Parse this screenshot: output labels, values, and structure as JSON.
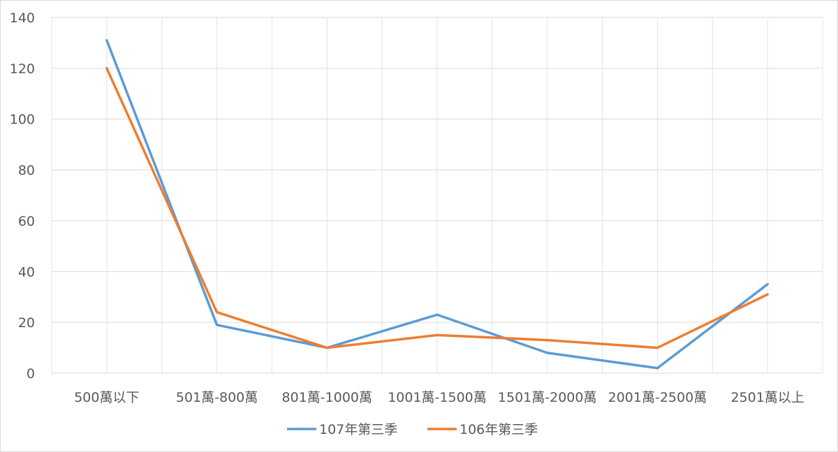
{
  "chart_data": {
    "type": "line",
    "title": "",
    "xlabel": "",
    "ylabel": "",
    "categories": [
      "500萬以下",
      "501萬-800萬",
      "801萬-1000萬",
      "1001萬-1500萬",
      "1501萬-2000萬",
      "2001萬-2500萬",
      "2501萬以上"
    ],
    "ylim": [
      0,
      140
    ],
    "yticks": [
      0,
      20,
      40,
      60,
      80,
      100,
      120,
      140
    ],
    "grid": true,
    "legend_position": "bottom",
    "series": [
      {
        "name": "107年第三季",
        "color": "#5b9bd5",
        "values": [
          131,
          19,
          10,
          23,
          8,
          2,
          35
        ]
      },
      {
        "name": "106年第三季",
        "color": "#ed7d31",
        "values": [
          120,
          24,
          10,
          15,
          13,
          10,
          31
        ]
      }
    ]
  }
}
